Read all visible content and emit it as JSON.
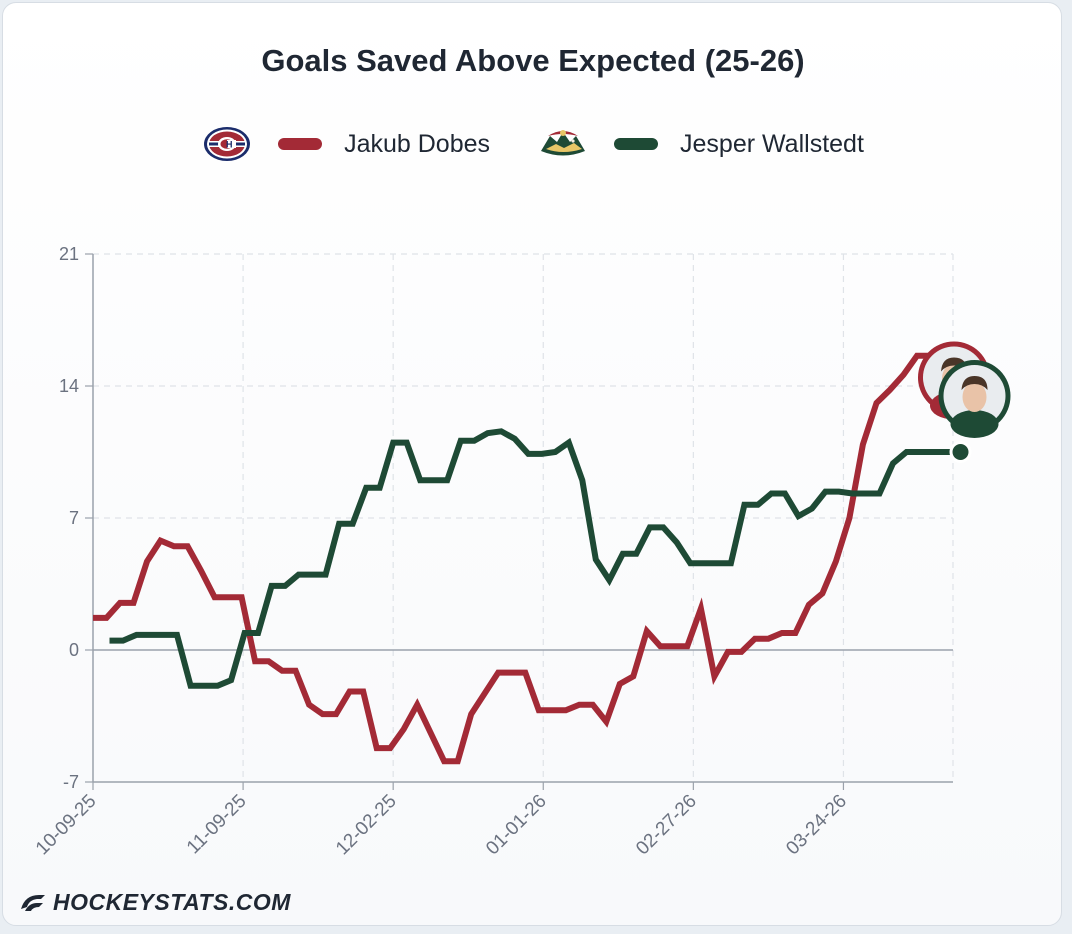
{
  "title": "Goals Saved Above Expected (25-26)",
  "brand": "HOCKEYSTATS.COM",
  "legend": [
    {
      "team_logo": "montreal-canadiens-logo",
      "name": "Jakub Dobes",
      "color": "#a32a36"
    },
    {
      "team_logo": "minnesota-wild-logo",
      "name": "Jesper Wallstedt",
      "color": "#1e4a35"
    }
  ],
  "chart_data": {
    "type": "line",
    "title": "Goals Saved Above Expected (25-26)",
    "xlabel": "",
    "ylabel": "",
    "y_ticks": [
      -7,
      0,
      7,
      14,
      21
    ],
    "ylim": [
      -7,
      21
    ],
    "x_tick_labels": [
      "10-09-25",
      "11-09-25",
      "12-02-25",
      "01-01-26",
      "02-27-26",
      "03-24-26"
    ],
    "x_tick_games": [
      0,
      10,
      20,
      30,
      40,
      50
    ],
    "x_max_game": 57.3,
    "grid": true,
    "legend_position": "top-center",
    "series": [
      {
        "name": "Jakub Dobes",
        "color": "#a32a36",
        "x": [
          0,
          0.9,
          1.8,
          2.7,
          3.6,
          4.5,
          5.4,
          6.3,
          7.2,
          8.1,
          9,
          9.9,
          10.8,
          11.7,
          12.6,
          13.5,
          14.4,
          15.3,
          16.2,
          17.1,
          18,
          18.9,
          19.8,
          20.7,
          21.6,
          22.5,
          23.4,
          24.3,
          25.2,
          26.1,
          27,
          27.9,
          28.8,
          29.7,
          30.6,
          31.5,
          32.4,
          33.3,
          34.2,
          35.1,
          36,
          36.9,
          37.8,
          38.7,
          39.6,
          40.5,
          41.4,
          42.3,
          43.2,
          44.1,
          45,
          45.9,
          46.8,
          47.7,
          48.6,
          49.5,
          50.4,
          51.3,
          52.2,
          53.1,
          54,
          54.9,
          55.8,
          56.7
        ],
        "y": [
          1.7,
          1.7,
          2.5,
          2.5,
          4.7,
          5.8,
          5.5,
          5.5,
          4.2,
          2.8,
          2.8,
          2.8,
          -0.6,
          -0.6,
          -1.1,
          -1.1,
          -2.9,
          -3.4,
          -3.4,
          -2.2,
          -2.2,
          -5.2,
          -5.2,
          -4.2,
          -2.9,
          -4.4,
          -5.9,
          -5.9,
          -3.4,
          -2.3,
          -1.2,
          -1.2,
          -1.2,
          -3.2,
          -3.2,
          -3.2,
          -2.9,
          -2.9,
          -3.8,
          -1.8,
          -1.4,
          1.0,
          0.2,
          0.2,
          0.2,
          2.2,
          -1.4,
          -0.1,
          -0.1,
          0.6,
          0.6,
          0.9,
          0.9,
          2.4,
          3.0,
          4.7,
          7.0,
          10.9,
          13.1,
          13.8,
          14.6,
          15.6,
          15.6,
          15.3
        ]
      },
      {
        "name": "Jesper Wallstedt",
        "color": "#1e4a35",
        "x": [
          0,
          0.9,
          1.8,
          2.7,
          3.6,
          4.5,
          5.4,
          6.3,
          7.2,
          8.1,
          9,
          9.9,
          10.8,
          11.7,
          12.6,
          13.5,
          14.4,
          15.3,
          16.2,
          17.1,
          18,
          18.9,
          19.8,
          20.7,
          21.6,
          22.5,
          23.4,
          24.3,
          25.2,
          26.1,
          27,
          27.9,
          28.8,
          29.7,
          30.6,
          31.5,
          32.4,
          33.3,
          34.2,
          35.1,
          36,
          36.9,
          37.8,
          38.7,
          39.6,
          40.5,
          41.4,
          42.3,
          43.2,
          44.1,
          45,
          45.9,
          46.8,
          47.7,
          48.6,
          49.5,
          50.4,
          51.3,
          52.2,
          53.1,
          54,
          54.9,
          55.8,
          56.7
        ],
        "y": [
          0.5,
          0.5,
          0.8,
          0.8,
          0.8,
          0.8,
          -1.9,
          -1.9,
          -1.9,
          -1.6,
          0.9,
          0.9,
          3.4,
          3.4,
          4.0,
          4.0,
          4.0,
          6.7,
          6.7,
          8.6,
          8.6,
          11.0,
          11.0,
          9.0,
          9.0,
          9.0,
          11.1,
          11.1,
          11.5,
          11.6,
          11.2,
          10.4,
          10.4,
          10.5,
          11.0,
          9.0,
          4.8,
          3.7,
          5.1,
          5.1,
          6.5,
          6.5,
          5.7,
          4.6,
          4.6,
          4.6,
          4.6,
          7.7,
          7.7,
          8.3,
          8.3,
          7.1,
          7.5,
          8.4,
          8.4,
          8.3,
          8.3,
          8.3,
          9.9,
          10.5,
          10.5,
          10.5,
          10.5,
          10.5
        ]
      }
    ]
  }
}
